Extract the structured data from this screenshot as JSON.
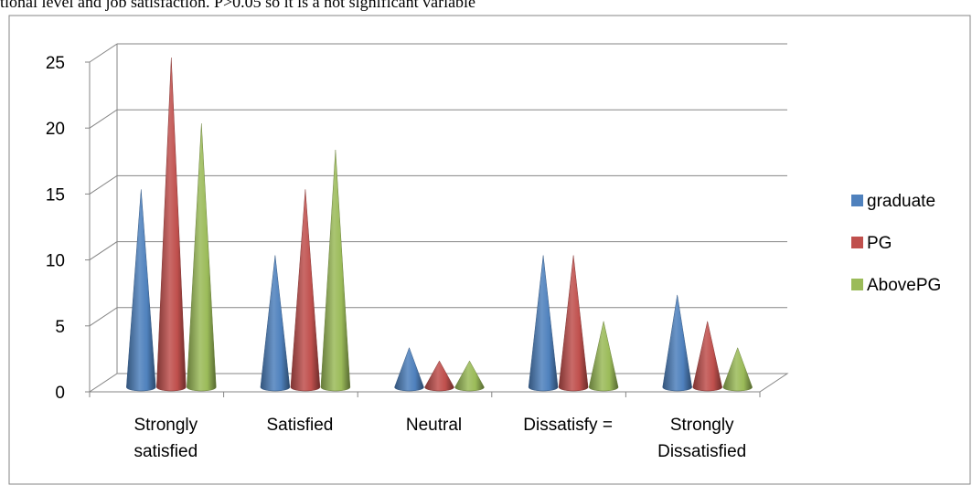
{
  "caption": "tional level and job satisfaction. P>0.05 so it is a not significant variable",
  "chart_data": {
    "type": "bar",
    "shape": "3d-cone",
    "categories": [
      [
        "Strongly",
        "satisfied"
      ],
      [
        "Satisfied"
      ],
      [
        "Neutral"
      ],
      [
        "Dissatisfy ="
      ],
      [
        "Strongly",
        "Dissatisfied"
      ]
    ],
    "series": [
      {
        "name": "graduate",
        "values": [
          15,
          10,
          3,
          10,
          7
        ],
        "color": "#4F81BD"
      },
      {
        "name": "PG",
        "values": [
          25,
          15,
          2,
          10,
          5
        ],
        "color": "#C0504D"
      },
      {
        "name": "AbovePG",
        "values": [
          20,
          18,
          2,
          5,
          3
        ],
        "color": "#9BBB59"
      }
    ],
    "yticks": [
      "0",
      "5",
      "10",
      "15",
      "20",
      "25"
    ],
    "ylim": [
      0,
      25
    ],
    "legend_position": "right",
    "grid": true
  }
}
